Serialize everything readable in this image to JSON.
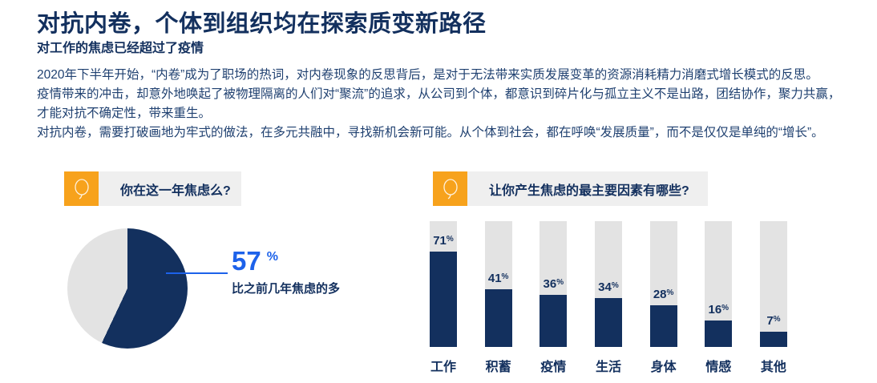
{
  "header": {
    "title": "对抗内卷，个体到组织均在探索质变新路径",
    "subtitle": "对工作的焦虑已经超过了疫情",
    "paragraph_lines": [
      "2020年下半年开始，“内卷”成为了职场的热词，对内卷现象的反思背后，是对于无法带来实质发展变革的资源消耗精力消磨式增长模式的反思。",
      "疫情带来的冲击，却意外地唤起了被物理隔离的人们对“聚流”的追求，从公司到个体，都意识到碎片化与孤立主义不是出路，团结协作，聚力共赢，",
      "才能对抗不确定性，带来重生。",
      "对抗内卷，需要打破画地为牢式的做法，在多元共融中，寻找新机会新可能。从个体到社会，都在呼唤“发展质量”，而不是仅仅是单纯的“增长”。"
    ]
  },
  "colors": {
    "navy": "#13305e",
    "body_text": "#1f4070",
    "accent_blue": "#1d62ea",
    "orange": "#f7a21c",
    "chart_gray": "#e3e3e3",
    "question_bar_gray": "#efefef"
  },
  "pie_section": {
    "question": "你在这一年焦虑么?",
    "value": "57",
    "unit": "%",
    "caption": "比之前几年焦虑的多"
  },
  "bar_section": {
    "question": "让你产生焦虑的最主要因素有哪些?"
  },
  "chart_data": [
    {
      "type": "pie",
      "question": "你在这一年焦虑么?",
      "slices": [
        {
          "label": "比之前几年焦虑的多",
          "value": 57,
          "color": "#13305e"
        },
        {
          "label": "",
          "value": 43,
          "color": "#e3e3e3"
        }
      ],
      "annotation": "57% 比之前几年焦虑的多",
      "start": "top-clockwise"
    },
    {
      "type": "bar",
      "question": "让你产生焦虑的最主要因素有哪些?",
      "categories": [
        "工作",
        "积蓄",
        "疫情",
        "生活",
        "身体",
        "情感",
        "其他"
      ],
      "values": [
        71,
        41,
        36,
        34,
        28,
        16,
        7
      ],
      "unit": "%",
      "ylim": [
        0,
        100
      ],
      "bar_color": "#13305e",
      "track_color": "#e3e3e3",
      "legend": "none",
      "grid": "off"
    }
  ]
}
